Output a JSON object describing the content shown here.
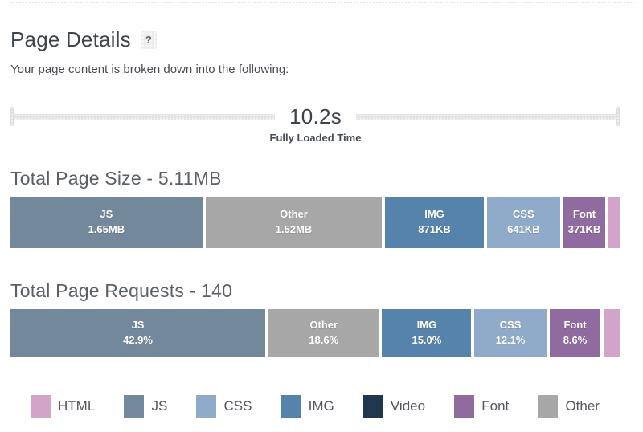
{
  "page": {
    "title": "Page Details",
    "help_badge": "?",
    "subtitle": "Your page content is broken down into the following:"
  },
  "timeline": {
    "value": "10.2s",
    "label": "Fully Loaded Time"
  },
  "colors": {
    "html": "#d2a4c8",
    "js": "#74889c",
    "css": "#8fabc9",
    "img": "#5583ab",
    "video": "#20374f",
    "font": "#8f6b9f",
    "other": "#a7a7a7"
  },
  "chart_data": [
    {
      "type": "bar",
      "variant": "horizontal-stacked",
      "title": "Total Page Size - 5.11MB",
      "total_label": "5.11MB",
      "categories": [
        "JS",
        "Other",
        "IMG",
        "CSS",
        "Font",
        "HTML"
      ],
      "values": [
        "1.65MB",
        "1.52MB",
        "871KB",
        "641KB",
        "371KB",
        ""
      ],
      "segments": [
        {
          "label": "JS",
          "value": "1.65MB",
          "pct": 32.3,
          "color_key": "js",
          "show_label": true
        },
        {
          "label": "Other",
          "value": "1.52MB",
          "pct": 29.7,
          "color_key": "other",
          "show_label": true
        },
        {
          "label": "IMG",
          "value": "871KB",
          "pct": 16.6,
          "color_key": "img",
          "show_label": true
        },
        {
          "label": "CSS",
          "value": "641KB",
          "pct": 12.3,
          "color_key": "css",
          "show_label": true
        },
        {
          "label": "Font",
          "value": "371KB",
          "pct": 7.1,
          "color_key": "font",
          "show_label": true
        },
        {
          "label": "HTML",
          "value": "",
          "pct": 2.0,
          "color_key": "html",
          "show_label": false
        }
      ]
    },
    {
      "type": "bar",
      "variant": "horizontal-stacked",
      "title": "Total Page Requests - 140",
      "total_label": "140",
      "categories": [
        "JS",
        "Other",
        "IMG",
        "CSS",
        "Font",
        "HTML"
      ],
      "values": [
        "42.9%",
        "18.6%",
        "15.0%",
        "12.1%",
        "8.6%",
        ""
      ],
      "segments": [
        {
          "label": "JS",
          "value": "42.9%",
          "pct": 42.9,
          "color_key": "js",
          "show_label": true
        },
        {
          "label": "Other",
          "value": "18.6%",
          "pct": 18.6,
          "color_key": "other",
          "show_label": true
        },
        {
          "label": "IMG",
          "value": "15.0%",
          "pct": 15.0,
          "color_key": "img",
          "show_label": true
        },
        {
          "label": "CSS",
          "value": "12.1%",
          "pct": 12.1,
          "color_key": "css",
          "show_label": true
        },
        {
          "label": "Font",
          "value": "8.6%",
          "pct": 8.6,
          "color_key": "font",
          "show_label": true
        },
        {
          "label": "HTML",
          "value": "",
          "pct": 2.8,
          "color_key": "html",
          "show_label": false
        }
      ]
    }
  ],
  "legend": [
    {
      "label": "HTML",
      "color_key": "html"
    },
    {
      "label": "JS",
      "color_key": "js"
    },
    {
      "label": "CSS",
      "color_key": "css"
    },
    {
      "label": "IMG",
      "color_key": "img"
    },
    {
      "label": "Video",
      "color_key": "video"
    },
    {
      "label": "Font",
      "color_key": "font"
    },
    {
      "label": "Other",
      "color_key": "other"
    }
  ]
}
